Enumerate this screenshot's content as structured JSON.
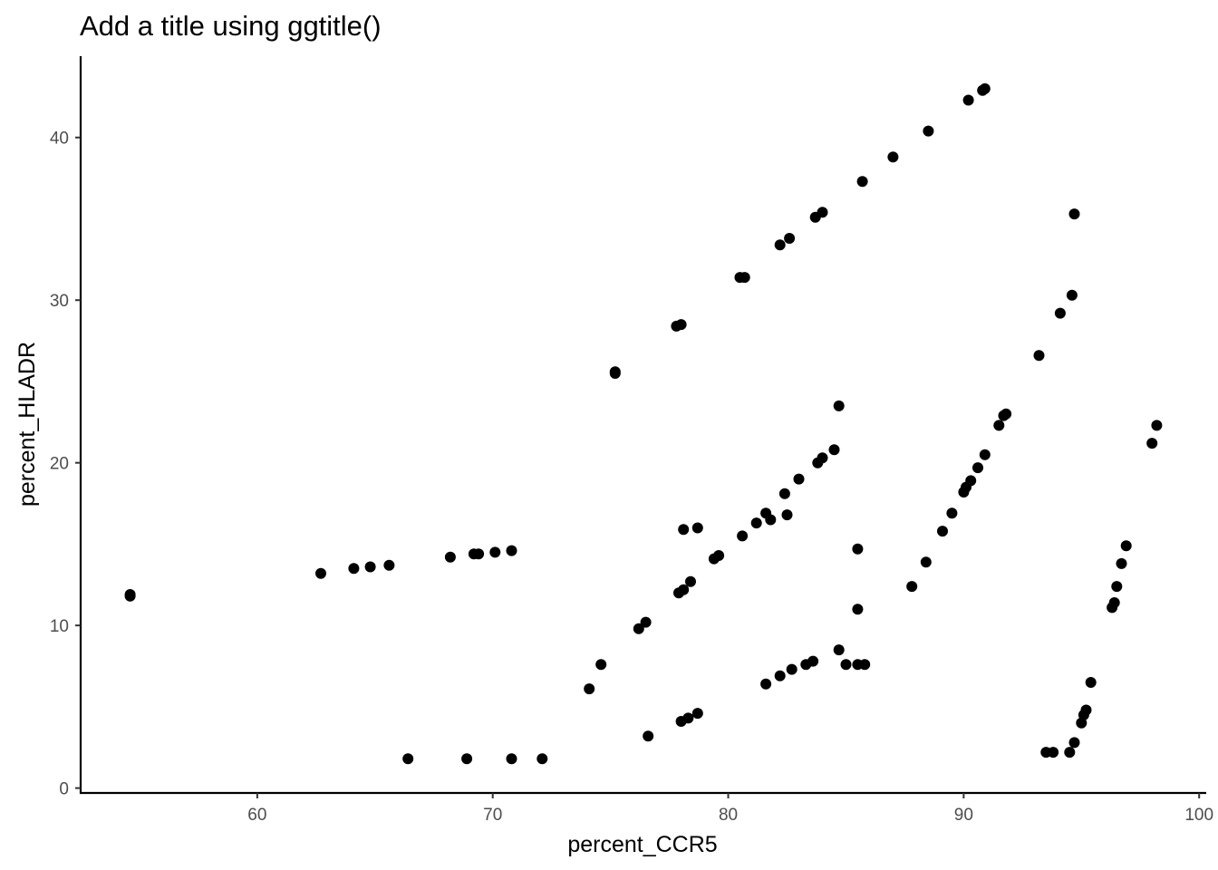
{
  "chart_data": {
    "type": "scatter",
    "title": "Add a title using ggtitle()",
    "xlabel": "percent_CCR5",
    "ylabel": "percent_HLADR",
    "xlim": [
      52.5,
      100.3
    ],
    "ylim": [
      -0.3,
      45.0
    ],
    "xticks": [
      60,
      70,
      80,
      90,
      100
    ],
    "yticks": [
      0,
      10,
      20,
      30,
      40
    ],
    "grid": false,
    "point_color": "#000000",
    "points": [
      [
        54.6,
        11.8
      ],
      [
        54.6,
        11.9
      ],
      [
        62.7,
        13.2
      ],
      [
        64.1,
        13.5
      ],
      [
        64.8,
        13.6
      ],
      [
        65.6,
        13.7
      ],
      [
        68.2,
        14.2
      ],
      [
        69.2,
        14.4
      ],
      [
        69.4,
        14.4
      ],
      [
        70.1,
        14.5
      ],
      [
        70.8,
        14.6
      ],
      [
        66.4,
        1.8
      ],
      [
        68.9,
        1.8
      ],
      [
        70.8,
        1.8
      ],
      [
        72.1,
        1.8
      ],
      [
        74.1,
        6.1
      ],
      [
        74.6,
        7.6
      ],
      [
        76.2,
        9.8
      ],
      [
        76.5,
        10.2
      ],
      [
        76.6,
        3.2
      ],
      [
        75.2,
        25.5
      ],
      [
        75.2,
        25.6
      ],
      [
        77.8,
        28.4
      ],
      [
        78.0,
        28.5
      ],
      [
        77.9,
        12.0
      ],
      [
        78.1,
        12.2
      ],
      [
        78.4,
        12.7
      ],
      [
        78.1,
        15.9
      ],
      [
        78.7,
        16.0
      ],
      [
        78.0,
        4.1
      ],
      [
        78.3,
        4.3
      ],
      [
        78.7,
        4.6
      ],
      [
        79.4,
        14.1
      ],
      [
        79.6,
        14.3
      ],
      [
        80.6,
        15.5
      ],
      [
        81.2,
        16.3
      ],
      [
        81.6,
        16.9
      ],
      [
        81.8,
        16.5
      ],
      [
        82.4,
        18.1
      ],
      [
        82.5,
        16.8
      ],
      [
        83.0,
        19.0
      ],
      [
        80.5,
        31.4
      ],
      [
        80.7,
        31.4
      ],
      [
        82.2,
        33.4
      ],
      [
        82.6,
        33.8
      ],
      [
        83.7,
        35.1
      ],
      [
        84.0,
        35.4
      ],
      [
        85.7,
        37.3
      ],
      [
        87.0,
        38.8
      ],
      [
        88.5,
        40.4
      ],
      [
        90.2,
        42.3
      ],
      [
        90.8,
        42.9
      ],
      [
        90.9,
        43.0
      ],
      [
        83.8,
        20.0
      ],
      [
        84.0,
        20.3
      ],
      [
        84.5,
        20.8
      ],
      [
        84.7,
        23.5
      ],
      [
        81.6,
        6.4
      ],
      [
        82.2,
        6.9
      ],
      [
        82.7,
        7.3
      ],
      [
        83.3,
        7.6
      ],
      [
        83.6,
        7.8
      ],
      [
        84.7,
        8.5
      ],
      [
        85.0,
        7.6
      ],
      [
        85.5,
        7.6
      ],
      [
        85.8,
        7.6
      ],
      [
        85.5,
        11.0
      ],
      [
        85.5,
        14.7
      ],
      [
        87.8,
        12.4
      ],
      [
        88.4,
        13.9
      ],
      [
        89.1,
        15.8
      ],
      [
        89.5,
        16.9
      ],
      [
        90.0,
        18.2
      ],
      [
        90.1,
        18.5
      ],
      [
        90.3,
        18.9
      ],
      [
        90.6,
        19.7
      ],
      [
        90.9,
        20.5
      ],
      [
        91.5,
        22.3
      ],
      [
        91.7,
        22.9
      ],
      [
        91.8,
        23.0
      ],
      [
        93.2,
        26.6
      ],
      [
        94.1,
        29.2
      ],
      [
        94.6,
        30.3
      ],
      [
        94.7,
        35.3
      ],
      [
        93.5,
        2.2
      ],
      [
        93.8,
        2.2
      ],
      [
        94.5,
        2.2
      ],
      [
        94.7,
        2.8
      ],
      [
        95.0,
        4.0
      ],
      [
        95.1,
        4.5
      ],
      [
        95.2,
        4.8
      ],
      [
        95.4,
        6.5
      ],
      [
        96.3,
        11.1
      ],
      [
        96.4,
        11.4
      ],
      [
        96.5,
        12.4
      ],
      [
        96.7,
        13.8
      ],
      [
        96.9,
        14.9
      ],
      [
        98.0,
        21.2
      ],
      [
        98.2,
        22.3
      ]
    ]
  }
}
